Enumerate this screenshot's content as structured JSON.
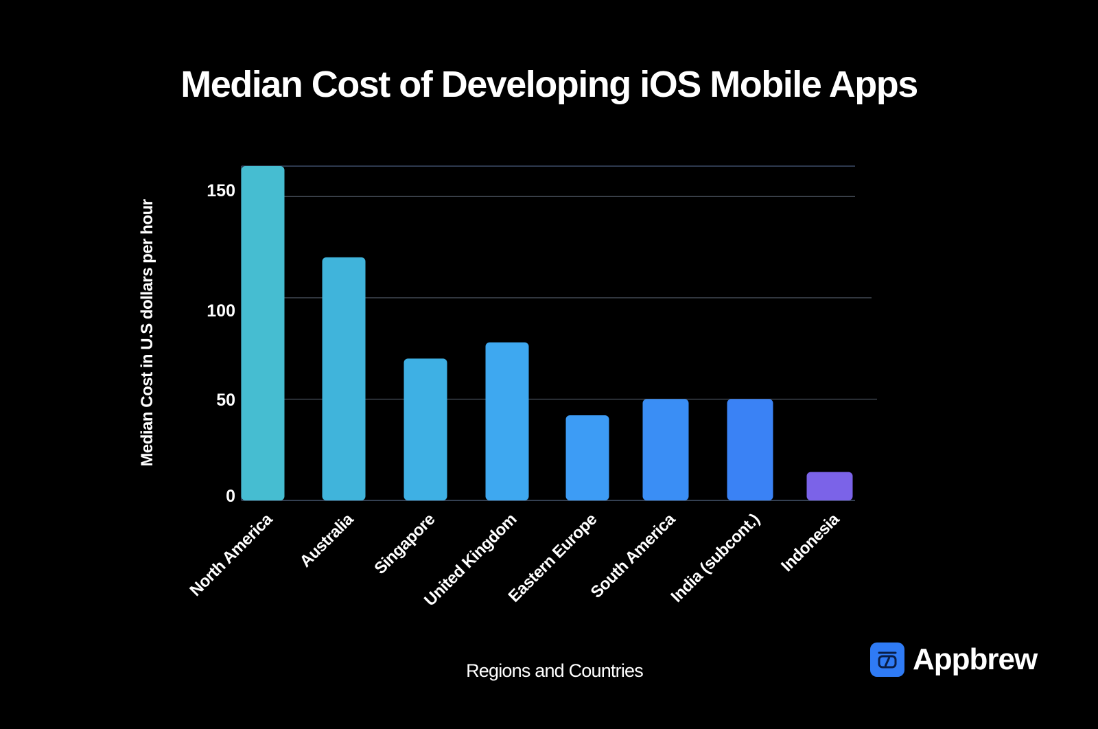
{
  "title": "Median Cost of Developing iOS Mobile Apps",
  "brand": {
    "name": "Appbrew",
    "icon": "code-bracket-icon",
    "color": "#2f7bf5"
  },
  "colors": [
    "#46bdd1",
    "#40b4db",
    "#3eb0e4",
    "#3ea8f0",
    "#3d9cf5",
    "#3a8ef5",
    "#3a82f5",
    "#7b63e8"
  ],
  "chart_data": {
    "type": "bar",
    "title": "Median Cost of Developing iOS Mobile Apps",
    "xlabel": "Regions and Countries",
    "ylabel": "Median Cost in U.S dollars per hour",
    "categories": [
      "North America",
      "Australia",
      "Singapore",
      "United Kingdom",
      "Eastern Europe",
      "South America",
      "India (subcont.)",
      "Indonesia"
    ],
    "values": [
      165,
      120,
      70,
      78,
      42,
      50,
      50,
      14
    ],
    "yticks": [
      0,
      50,
      100,
      150
    ],
    "ylim": [
      0,
      165
    ],
    "grid": true
  }
}
